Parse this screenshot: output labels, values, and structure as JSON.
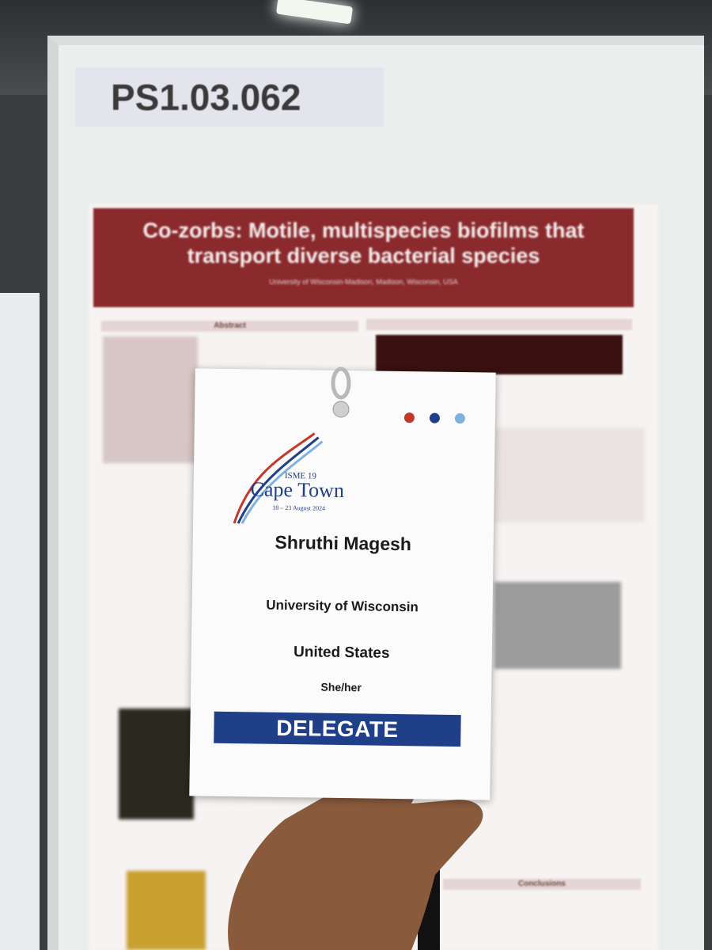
{
  "board": {
    "label": "PS1.03.062"
  },
  "poster": {
    "title": "Co-zorbs: Motile, multispecies biofilms that transport diverse bacterial species",
    "affiliation": "University of Wisconsin-Madison, Madison, Wisconsin, USA",
    "sections": [
      "Abstract",
      "Conclusions"
    ]
  },
  "badge": {
    "event": "ISME 19",
    "city": "Cape Town",
    "dates": "18 – 23 August 2024",
    "name": "Shruthi Magesh",
    "institution": "University of Wisconsin",
    "country": "United States",
    "pronouns": "She/her",
    "role": "DELEGATE"
  }
}
